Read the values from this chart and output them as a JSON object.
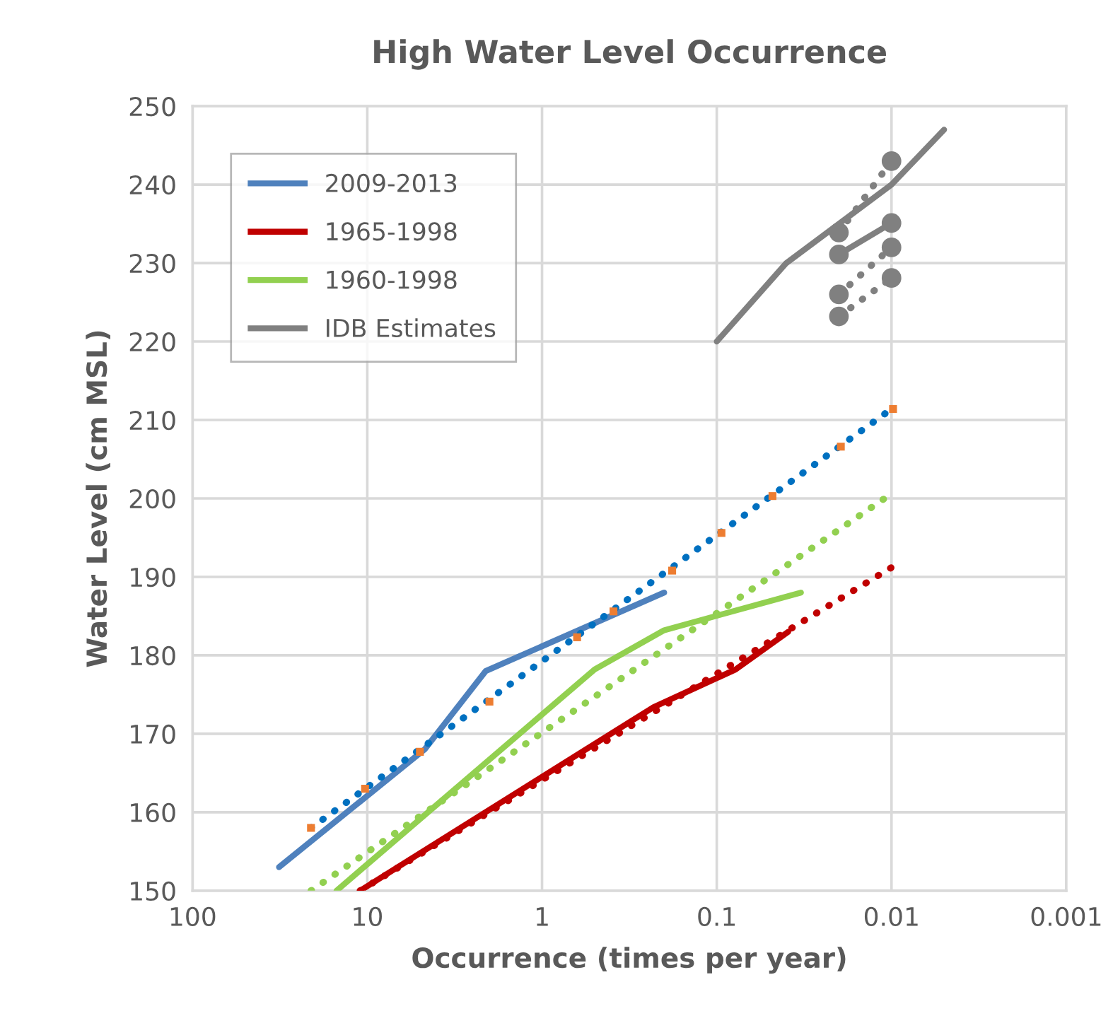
{
  "chart_data": {
    "type": "line",
    "title": "High Water Level Occurrence",
    "xlabel": "Occurrence (times per year)",
    "ylabel": "Water Level (cm MSL)",
    "log": "x",
    "xlim": [
      100,
      0.001
    ],
    "xticks": [
      {
        "value": 100,
        "label": "100"
      },
      {
        "value": 10,
        "label": "10"
      },
      {
        "value": 1,
        "label": "1"
      },
      {
        "value": 0.1,
        "label": "0.1"
      },
      {
        "value": 0.01,
        "label": "0.01"
      },
      {
        "value": 0.001,
        "label": "0.001"
      }
    ],
    "ylim": [
      150,
      250
    ],
    "yticks": [
      150,
      160,
      170,
      180,
      190,
      200,
      210,
      220,
      230,
      240,
      250
    ],
    "grid": true,
    "legend": "top left",
    "series": [
      {
        "name": "2009-2013",
        "color": "#4f81bd",
        "x": [
          32,
          4.7,
          2.1,
          0.2
        ],
        "values": [
          153,
          168,
          178,
          188
        ]
      },
      {
        "name": "1965-1998",
        "color": "#c00000",
        "x": [
          11,
          0.23,
          0.078,
          0.039
        ],
        "values": [
          150,
          173.4,
          178.2,
          183
        ]
      },
      {
        "name": "1960-1998",
        "color": "#92d050",
        "x": [
          15,
          0.5,
          0.2,
          0.033
        ],
        "values": [
          150,
          178.2,
          183.2,
          188
        ]
      },
      {
        "name": "IDB Estimates",
        "color": "#808080",
        "x": [
          0.1,
          0.04,
          0.01,
          0.005
        ],
        "values": [
          220,
          230,
          240,
          247
        ]
      },
      {
        "color": "#0070c0",
        "line_style": "dotted",
        "x": [
          21,
          0.01
        ],
        "values": [
          158,
          211.4
        ]
      },
      {
        "color": "#92d050",
        "line_style": "dotted",
        "x": [
          21,
          0.01
        ],
        "values": [
          150,
          200.6
        ]
      },
      {
        "color": "#c00000",
        "line_style": "dotted",
        "x": [
          11,
          0.01
        ],
        "values": [
          150,
          191.2
        ]
      },
      {
        "type": "scatter",
        "marker": "square",
        "color": "#ed7d31",
        "x": [
          21,
          10.3,
          5,
          2,
          0.63,
          0.39,
          0.18,
          0.094,
          0.048,
          0.0195,
          0.0098
        ],
        "values": [
          158,
          163,
          167.7,
          174.1,
          182.3,
          185.6,
          190.8,
          195.6,
          200.3,
          206.6,
          211.4
        ]
      },
      {
        "color": "#808080",
        "line_style": "dotted",
        "marker": "circle",
        "x": [
          0.02,
          0.01
        ],
        "values": [
          233.9,
          243
        ]
      },
      {
        "color": "#808080",
        "line_style": "solid",
        "marker": "circle",
        "x": [
          0.02,
          0.01
        ],
        "values": [
          231.1,
          235.1
        ]
      },
      {
        "color": "#808080",
        "line_style": "dotted",
        "marker": "circle",
        "x": [
          0.02,
          0.01
        ],
        "values": [
          226,
          232
        ]
      },
      {
        "color": "#808080",
        "line_style": "dotted",
        "marker": "circle",
        "x": [
          0.02,
          0.01
        ],
        "values": [
          223.2,
          228.1
        ]
      }
    ]
  }
}
